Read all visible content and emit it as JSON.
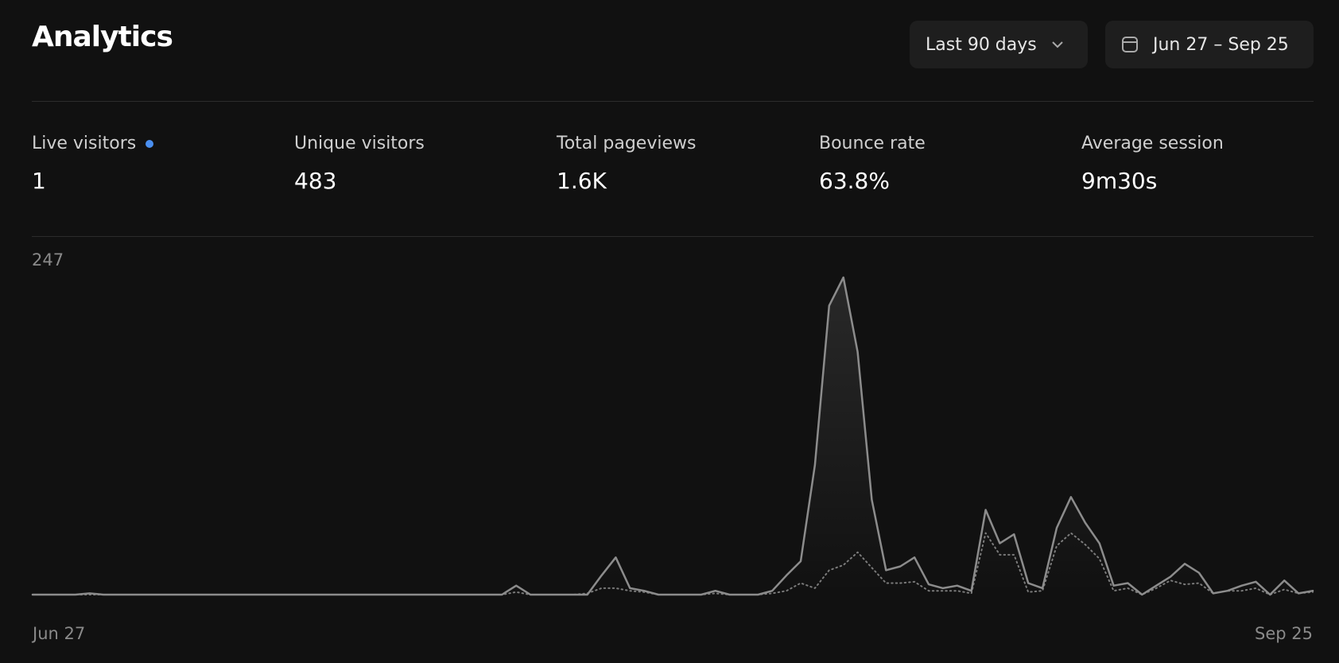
{
  "header": {
    "title": "Analytics",
    "range_select": "Last 90 days",
    "date_range": "Jun 27 – Sep 25"
  },
  "stats": [
    {
      "label": "Live visitors",
      "value": "1"
    },
    {
      "label": "Unique visitors",
      "value": "483"
    },
    {
      "label": "Total pageviews",
      "value": "1.6K"
    },
    {
      "label": "Bounce rate",
      "value": "63.8%"
    },
    {
      "label": "Average session",
      "value": "9m30s"
    }
  ],
  "chart_data": {
    "type": "line",
    "categories": [
      "Jun 27",
      null,
      null,
      null,
      null,
      null,
      null,
      null,
      null,
      null,
      null,
      null,
      null,
      null,
      null,
      null,
      null,
      null,
      null,
      null,
      null,
      null,
      null,
      null,
      null,
      null,
      null,
      null,
      null,
      null,
      null,
      null,
      null,
      null,
      null,
      null,
      null,
      null,
      null,
      null,
      null,
      null,
      null,
      null,
      null,
      null,
      null,
      null,
      null,
      null,
      null,
      null,
      null,
      null,
      null,
      null,
      null,
      null,
      null,
      null,
      null,
      null,
      null,
      null,
      null,
      null,
      null,
      null,
      null,
      null,
      null,
      null,
      null,
      null,
      null,
      null,
      null,
      null,
      null,
      null,
      null,
      null,
      null,
      null,
      null,
      null,
      null,
      null,
      null,
      null,
      "Sep 25"
    ],
    "series": [
      {
        "color": "#8c8c8c",
        "line_style": "solid",
        "fill": true,
        "values": [
          0,
          0,
          0,
          0,
          1,
          0,
          0,
          0,
          0,
          0,
          0,
          0,
          0,
          0,
          0,
          0,
          0,
          0,
          0,
          0,
          0,
          0,
          0,
          0,
          0,
          0,
          0,
          0,
          0,
          0,
          0,
          0,
          0,
          0,
          7,
          0,
          0,
          0,
          0,
          0,
          15,
          29,
          5,
          3,
          0,
          0,
          0,
          0,
          3,
          0,
          0,
          0,
          3,
          15,
          26,
          101,
          225,
          247,
          189,
          74,
          19,
          22,
          29,
          8,
          5,
          7,
          3,
          66,
          40,
          47,
          9,
          5,
          52,
          76,
          56,
          40,
          7,
          9,
          0,
          7,
          14,
          24,
          17,
          1,
          3,
          7,
          10,
          0,
          11,
          1,
          3
        ]
      },
      {
        "color": "#7a7a7a",
        "line_style": "dotted",
        "fill": false,
        "values": [
          0,
          0,
          0,
          0,
          0,
          0,
          0,
          0,
          0,
          0,
          0,
          0,
          0,
          0,
          0,
          0,
          0,
          0,
          0,
          0,
          0,
          0,
          0,
          0,
          0,
          0,
          0,
          0,
          0,
          0,
          0,
          0,
          0,
          0,
          2,
          0,
          0,
          0,
          0,
          1,
          5,
          5,
          3,
          2,
          0,
          0,
          0,
          0,
          1,
          0,
          0,
          0,
          1,
          3,
          9,
          5,
          19,
          23,
          33,
          21,
          9,
          9,
          10,
          3,
          3,
          3,
          1,
          48,
          31,
          31,
          2,
          3,
          38,
          48,
          39,
          28,
          3,
          5,
          0,
          5,
          11,
          8,
          9,
          1,
          3,
          3,
          5,
          0,
          4,
          1,
          2
        ]
      }
    ],
    "ylim": [
      0,
      247
    ],
    "yticks": [
      247
    ],
    "grid": false
  }
}
